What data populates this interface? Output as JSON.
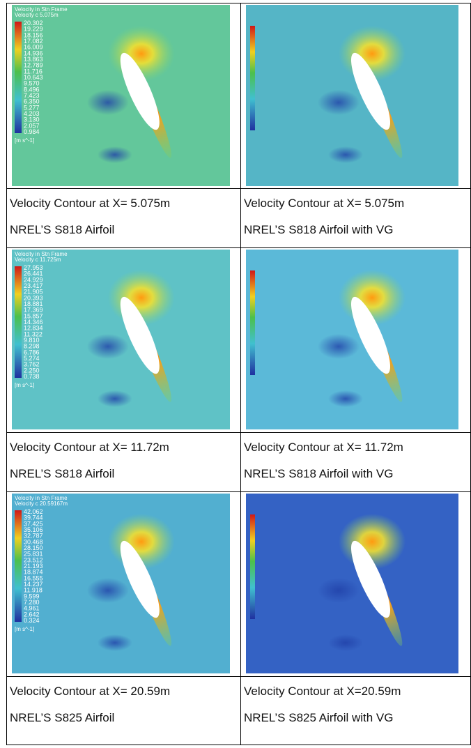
{
  "panels": [
    {
      "background": "#63c79b",
      "legend": {
        "title": "Velocity in Stn Frame",
        "subtitle": "Velocity c 5.075m",
        "values": [
          "20.302",
          "19.229",
          "18.156",
          "17.082",
          "16.009",
          "14.936",
          "13.863",
          "12.789",
          "11.716",
          "10.643",
          "9.570",
          "8.496",
          "7.423",
          "6.350",
          "5.277",
          "4.203",
          "3.130",
          "2.057",
          "0.984"
        ],
        "unit": "[m s^-1]"
      },
      "caption": [
        "Velocity Contour at X= 5.075m",
        "NREL’S S818 Airfoil"
      ]
    },
    {
      "background": "#55b5c6",
      "caption": [
        "Velocity Contour at X= 5.075m",
        "NREL’S S818 Airfoil with VG"
      ]
    },
    {
      "background": "#5fc2c6",
      "legend": {
        "title": "Velocity in Stn Frame",
        "subtitle": "Velocity c 11.725m",
        "values": [
          "27.953",
          "26.441",
          "24.929",
          "23.417",
          "21.905",
          "20.393",
          "18.881",
          "17.369",
          "15.857",
          "14.346",
          "12.834",
          "11.322",
          "9.810",
          "8.298",
          "6.786",
          "5.274",
          "3.762",
          "2.250",
          "0.738"
        ],
        "unit": "[m s^-1]"
      },
      "caption": [
        "Velocity Contour at X= 11.72m",
        "NREL’S S818 Airfoil"
      ]
    },
    {
      "background": "#5bb9d8",
      "caption": [
        "Velocity Contour at X= 11.72m",
        "NREL’S S818 Airfoil with VG"
      ]
    },
    {
      "background": "#52afd0",
      "legend": {
        "title": "Velocity in Stn Frame",
        "subtitle": "Velocity c 20.59167m",
        "values": [
          "42.062",
          "39.744",
          "37.425",
          "35.106",
          "32.787",
          "30.468",
          "28.150",
          "25.831",
          "23.512",
          "21.193",
          "18.874",
          "16.555",
          "14.237",
          "11.918",
          "9.599",
          "7.280",
          "4.961",
          "2.642",
          "0.324"
        ],
        "unit": "[m s^-1]"
      },
      "caption": [
        "Velocity Contour at X= 20.59m",
        "NREL’S S825 Airfoil"
      ]
    },
    {
      "background": "#3462c4",
      "caption": [
        "Velocity Contour at X=20.59m",
        "NREL’S S825 Airfoil with VG"
      ]
    }
  ]
}
